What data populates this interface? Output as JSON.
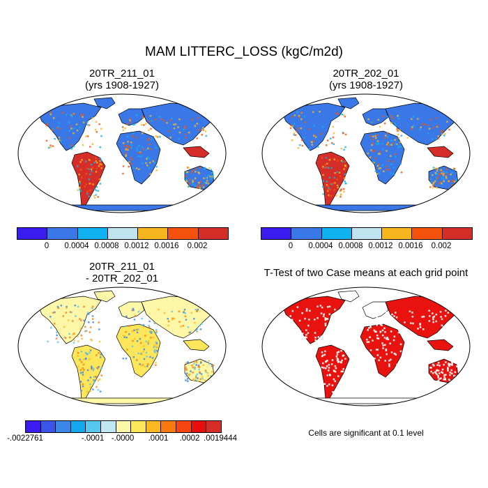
{
  "title": "MAM LITTERC_LOSS (kgC/m2d)",
  "chart_data": [
    {
      "type": "heatmap",
      "title_line1": "20TR_211_01",
      "title_line2": "(yrs 1908-1927)",
      "colorbar": {
        "colors": [
          "#3a1bf0",
          "#3a78e8",
          "#0fb2ee",
          "#bfe3ef",
          "#f8b61e",
          "#f4520c",
          "#d52d27"
        ],
        "tick_labels": [
          "0",
          "0.0004",
          "0.0008",
          "0.0012",
          "0.0016",
          "0.002"
        ]
      }
    },
    {
      "type": "heatmap",
      "title_line1": "20TR_202_01",
      "title_line2": "(yrs 1908-1927)",
      "colorbar": {
        "colors": [
          "#3a1bf0",
          "#3a78e8",
          "#0fb2ee",
          "#bfe3ef",
          "#f8b61e",
          "#f4520c",
          "#d52d27"
        ],
        "tick_labels": [
          "0",
          "0.0004",
          "0.0008",
          "0.0012",
          "0.0016",
          "0.002"
        ]
      }
    },
    {
      "type": "heatmap",
      "title_line1": "20TR_211_01",
      "title_line2": "- 20TR_202_01",
      "colorbar": {
        "colors": [
          "#3a1bf0",
          "#3a55ea",
          "#3a86eb",
          "#16a8ee",
          "#56c8f0",
          "#bfe8f4",
          "#fff7a8",
          "#fde65a",
          "#fbb820",
          "#f97b10",
          "#f54510",
          "#e60f0c",
          "#d52d27"
        ],
        "tick_labels": [
          "-.0022761",
          "-.0001",
          "-.0000",
          ".0001",
          ".0002",
          ".0019444"
        ]
      }
    },
    {
      "type": "heatmap",
      "title_line1": "T-Test of two Case means at each grid point",
      "note": "Cells are significant at 0.1 level",
      "colors": {
        "significant": "#e8130f"
      }
    }
  ]
}
